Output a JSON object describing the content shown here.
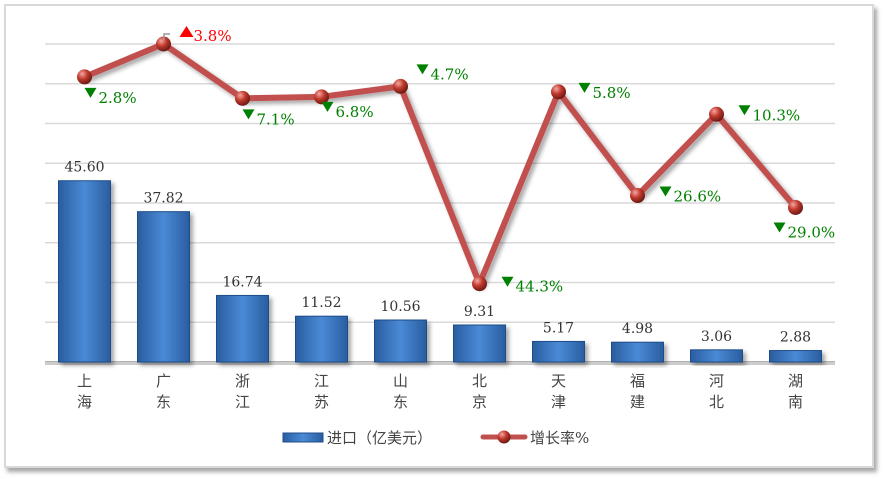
{
  "chart_data": {
    "type": "bar+line",
    "categories": [
      "上海",
      "广东",
      "浙江",
      "江苏",
      "山东",
      "北京",
      "天津",
      "福建",
      "河北",
      "湖南"
    ],
    "series": [
      {
        "name": "进口（亿美元）",
        "type": "bar",
        "axis": "primary",
        "values": [
          45.6,
          37.82,
          16.74,
          11.52,
          10.56,
          9.31,
          5.17,
          4.98,
          3.06,
          2.88
        ],
        "labels": [
          "45.60",
          "37.82",
          "16.74",
          "11.52",
          "10.56",
          "9.31",
          "5.17",
          "4.98",
          "3.06",
          "2.88"
        ],
        "color": "#3a78c3"
      },
      {
        "name": "增长率%",
        "type": "line",
        "axis": "secondary",
        "values": [
          -2.8,
          3.8,
          -7.1,
          -6.8,
          -4.7,
          -44.3,
          -5.8,
          -26.6,
          -10.3,
          -29.0
        ],
        "labels": [
          "2.8%",
          "3.8%",
          "7.1%",
          "6.8%",
          "4.7%",
          "44.3%",
          "5.8%",
          "26.6%",
          "10.3%",
          "29.0%"
        ],
        "color": "#c0504d"
      }
    ],
    "ylim": [
      0,
      80
    ],
    "y2lim": [
      -60,
      3.8
    ],
    "grid": true,
    "legend": "bottom",
    "up_color": "#ff0000",
    "down_color": "#008000"
  }
}
